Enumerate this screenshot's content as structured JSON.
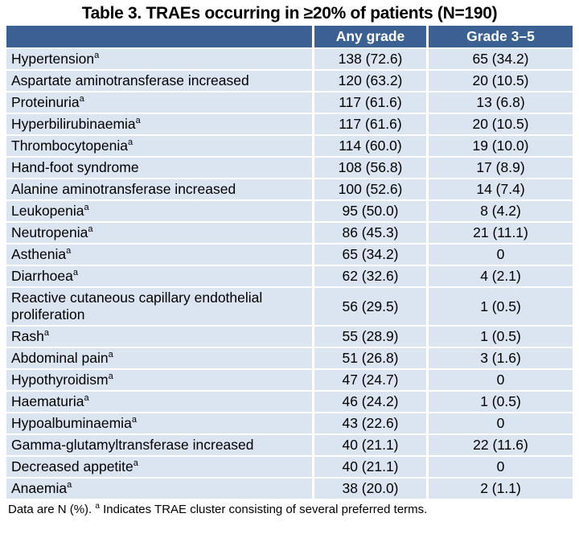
{
  "title": "Table 3. TRAEs occurring in ≥20% of patients (N=190)",
  "table": {
    "columns": [
      "",
      "Any grade",
      "Grade 3–5"
    ],
    "rows": [
      {
        "label": "Hypertension",
        "sup": "a",
        "any_grade": "138 (72.6)",
        "grade_3_5": "65 (34.2)"
      },
      {
        "label": "Aspartate aminotransferase increased",
        "sup": "",
        "any_grade": "120 (63.2)",
        "grade_3_5": "20 (10.5)"
      },
      {
        "label": "Proteinuria",
        "sup": "a",
        "any_grade": "117 (61.6)",
        "grade_3_5": "13 (6.8)"
      },
      {
        "label": "Hyperbilirubinaemia",
        "sup": "a",
        "any_grade": "117 (61.6)",
        "grade_3_5": "20 (10.5)"
      },
      {
        "label": "Thrombocytopenia",
        "sup": "a",
        "any_grade": "114 (60.0)",
        "grade_3_5": "19 (10.0)"
      },
      {
        "label": "Hand-foot syndrome",
        "sup": "",
        "any_grade": "108 (56.8)",
        "grade_3_5": "17 (8.9)"
      },
      {
        "label": "Alanine aminotransferase increased",
        "sup": "",
        "any_grade": "100 (52.6)",
        "grade_3_5": "14 (7.4)"
      },
      {
        "label": "Leukopenia",
        "sup": "a",
        "any_grade": "95 (50.0)",
        "grade_3_5": "8 (4.2)"
      },
      {
        "label": "Neutropenia",
        "sup": "a",
        "any_grade": "86 (45.3)",
        "grade_3_5": "21 (11.1)"
      },
      {
        "label": "Asthenia",
        "sup": "a",
        "any_grade": "65 (34.2)",
        "grade_3_5": "0"
      },
      {
        "label": "Diarrhoea",
        "sup": "a",
        "any_grade": "62 (32.6)",
        "grade_3_5": "4 (2.1)"
      },
      {
        "label": "Reactive cutaneous capillary endothelial proliferation",
        "sup": "",
        "any_grade": "56 (29.5)",
        "grade_3_5": "1 (0.5)"
      },
      {
        "label": "Rash",
        "sup": "a",
        "any_grade": "55 (28.9)",
        "grade_3_5": "1 (0.5)"
      },
      {
        "label": "Abdominal pain",
        "sup": "a",
        "any_grade": "51 (26.8)",
        "grade_3_5": "3 (1.6)"
      },
      {
        "label": "Hypothyroidism",
        "sup": "a",
        "any_grade": "47 (24.7)",
        "grade_3_5": "0"
      },
      {
        "label": "Haematuria",
        "sup": "a",
        "any_grade": "46 (24.2)",
        "grade_3_5": "1 (0.5)"
      },
      {
        "label": "Hypoalbuminaemia",
        "sup": "a",
        "any_grade": "43 (22.6)",
        "grade_3_5": "0"
      },
      {
        "label": "Gamma-glutamyltransferase increased",
        "sup": "",
        "any_grade": "40 (21.1)",
        "grade_3_5": "22 (11.6)"
      },
      {
        "label": "Decreased appetite",
        "sup": "a",
        "any_grade": "40 (21.1)",
        "grade_3_5": "0"
      },
      {
        "label": "Anaemia",
        "sup": "a",
        "any_grade": "38 (20.0)",
        "grade_3_5": "2 (1.1)"
      }
    ]
  },
  "footnote": {
    "prefix": "Data are N (%). ",
    "sup": "a",
    "suffix": " Indicates TRAE cluster consisting of several preferred terms."
  },
  "colors": {
    "header_bg": "#3B6192",
    "header_text": "#FFFFFF",
    "row_bg": "#DBE5F1",
    "divider": "#FFFFFF",
    "text": "#000000"
  }
}
